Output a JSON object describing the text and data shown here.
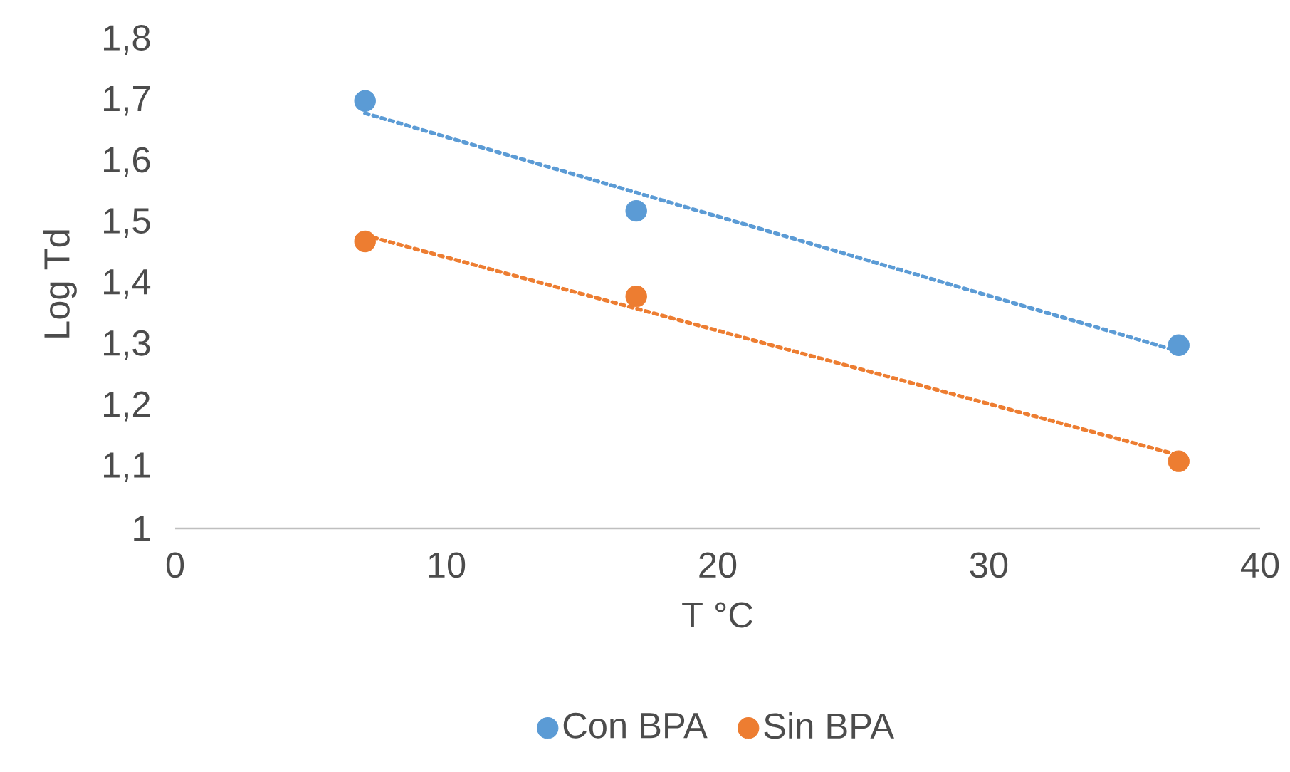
{
  "chart_data": {
    "type": "scatter",
    "xlabel": "T °C",
    "ylabel": "Log Td",
    "xlim": [
      0,
      40
    ],
    "xticks": [
      0,
      10,
      20,
      30,
      40
    ],
    "ylim": [
      1,
      1.8
    ],
    "yticks": [
      1,
      {
        "value": 1.1,
        "label": "1,1"
      },
      {
        "value": 1.2,
        "label": "1,2"
      },
      {
        "value": 1.3,
        "label": "1,3"
      },
      {
        "value": 1.4,
        "label": "1,4"
      },
      {
        "value": 1.5,
        "label": "1,5"
      },
      {
        "value": 1.6,
        "label": "1,6"
      },
      {
        "value": 1.7,
        "label": "1,7"
      },
      {
        "value": 1.8,
        "label": "1,8"
      }
    ],
    "legend": "bottom",
    "marker": "circle",
    "series": [
      {
        "name": "Con BPA",
        "color": "#5b9bd5",
        "x": [
          7,
          17,
          37
        ],
        "values": [
          1.7,
          1.52,
          1.3
        ]
      },
      {
        "name": "Sin BPA",
        "color": "#ed7d31",
        "x": [
          7,
          17,
          37
        ],
        "values": [
          1.47,
          1.38,
          1.11
        ]
      },
      {
        "type": "line",
        "color": "#5b9bd5",
        "marker": "none",
        "line_style": "dotted",
        "x": [
          7,
          37
        ],
        "values": [
          1.68,
          1.29
        ]
      },
      {
        "type": "line",
        "color": "#ed7d31",
        "marker": "none",
        "line_style": "dotted",
        "x": [
          7,
          37
        ],
        "values": [
          1.48,
          1.12
        ]
      }
    ]
  }
}
